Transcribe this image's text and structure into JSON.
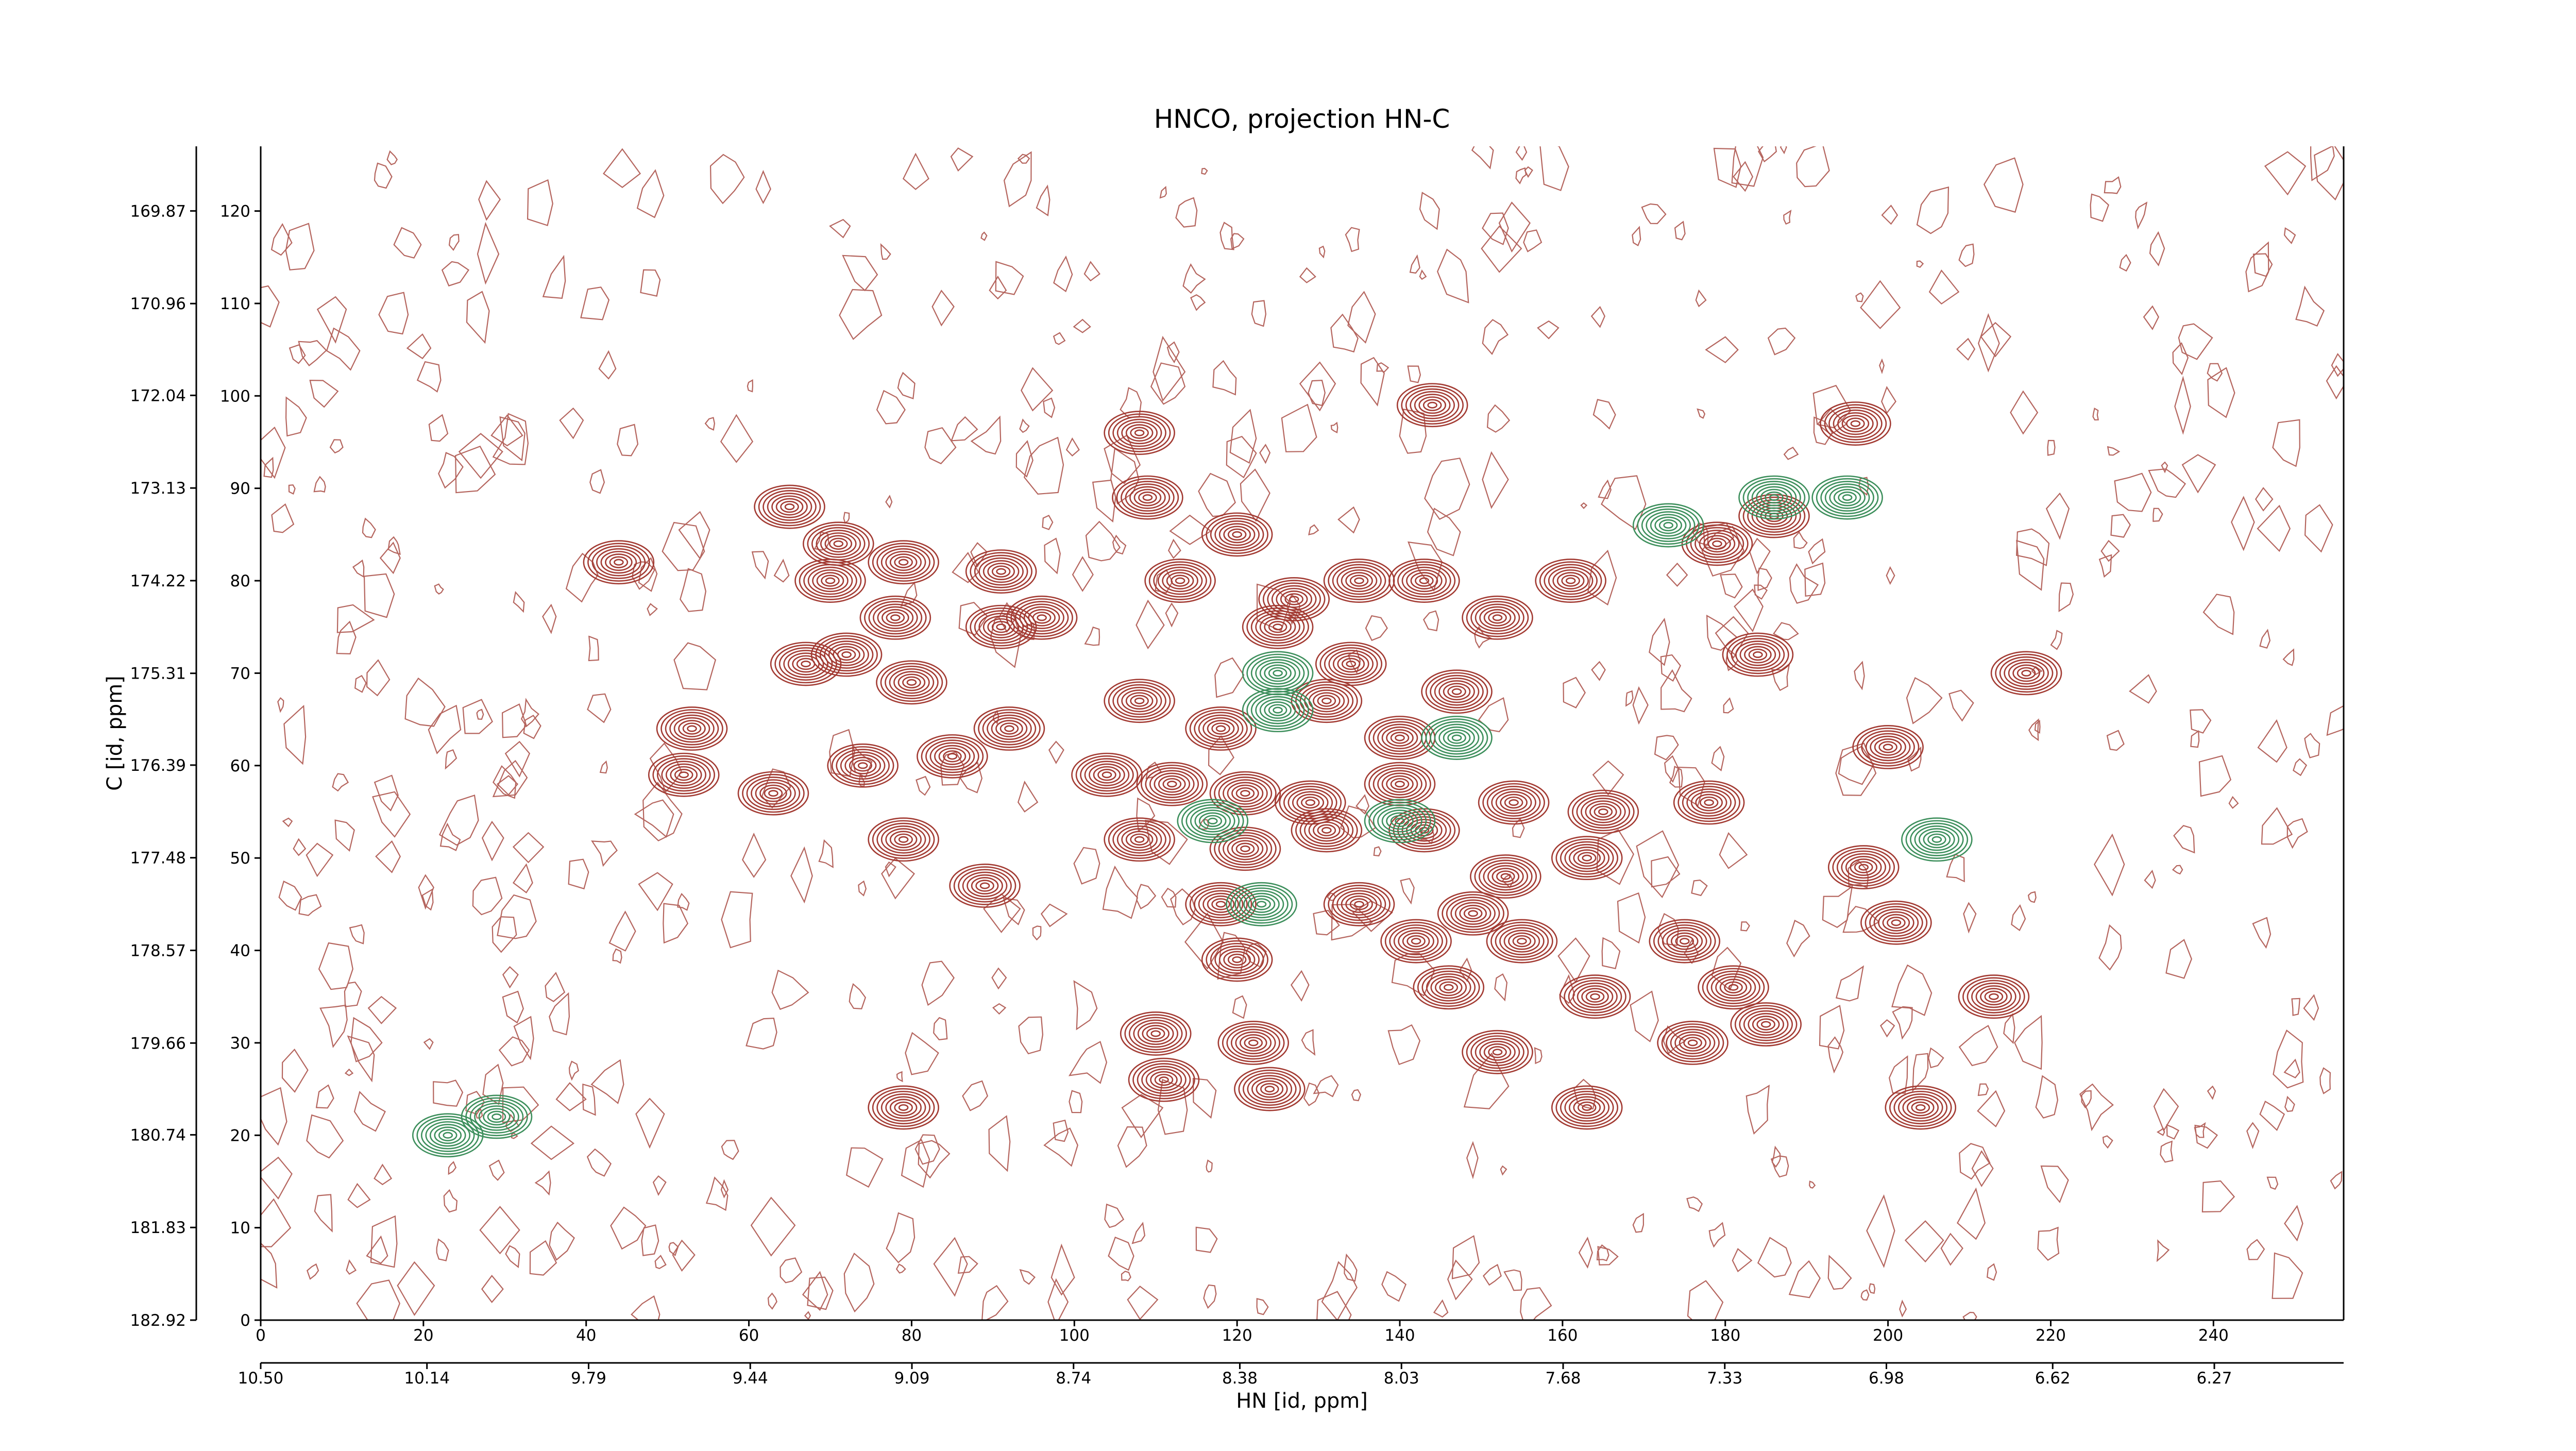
{
  "chart_data": {
    "type": "contour",
    "title": "HNCO, projection HN-C",
    "xlabel": "HN [id, ppm]",
    "ylabel": "C [id, ppm]",
    "xlim": [
      0,
      256
    ],
    "xticks": [
      0,
      20,
      40,
      60,
      80,
      100,
      120,
      140,
      160,
      180,
      200,
      220,
      240
    ],
    "x2lim": [
      10.5,
      5.99
    ],
    "x2ticks": [
      {
        "value": 10.5,
        "label": "10.50"
      },
      10.14,
      9.79,
      9.44,
      9.09,
      8.74,
      8.38,
      8.03,
      7.68,
      7.33,
      6.98,
      6.62,
      6.27
    ],
    "ylim": [
      0,
      127
    ],
    "yticks": [
      0,
      10,
      20,
      30,
      40,
      50,
      60,
      70,
      80,
      90,
      100,
      110,
      120
    ],
    "y2lim": [
      182.92,
      169.11
    ],
    "y2ticks": [
      182.92,
      181.83,
      180.74,
      179.66,
      178.57,
      177.48,
      176.39,
      175.31,
      174.22,
      173.13,
      172.04,
      170.96,
      169.87
    ],
    "series": [
      {
        "color": "#a33b33",
        "x": [
          44,
          65,
          71,
          70,
          79,
          78,
          67,
          72,
          80,
          91,
          91,
          96,
          53,
          52,
          63,
          74,
          85,
          92,
          79,
          89,
          108,
          109,
          120,
          144,
          196,
          108,
          113,
          127,
          135,
          143,
          125,
          134,
          147,
          131,
          140,
          118,
          104,
          112,
          121,
          129,
          140,
          154,
          165,
          178,
          108,
          121,
          131,
          143,
          153,
          163,
          197,
          200,
          184,
          217,
          201,
          118,
          135,
          149,
          142,
          155,
          120,
          146,
          164,
          175,
          181,
          185,
          176,
          110,
          122,
          111,
          124,
          152,
          163,
          204,
          213,
          79,
          152,
          161,
          179,
          186
        ],
        "y": [
          82,
          88,
          84,
          80,
          82,
          76,
          71,
          72,
          69,
          81,
          75,
          76,
          64,
          59,
          57,
          60,
          61,
          64,
          52,
          47,
          96,
          89,
          85,
          99,
          97,
          67,
          80,
          78,
          80,
          80,
          75,
          71,
          68,
          67,
          63,
          64,
          59,
          58,
          57,
          56,
          58,
          56,
          55,
          56,
          52,
          51,
          53,
          53,
          48,
          50,
          49,
          62,
          72,
          70,
          43,
          45,
          45,
          44,
          41,
          41,
          39,
          36,
          35,
          41,
          36,
          32,
          30,
          31,
          30,
          26,
          25,
          29,
          23,
          23,
          35,
          23,
          76,
          80,
          84,
          87
        ]
      },
      {
        "color": "#3d8f5c",
        "x": [
          173,
          186,
          195,
          23,
          29,
          117,
          140,
          147,
          125,
          125,
          123,
          206
        ],
        "y": [
          86,
          89,
          89,
          20,
          22,
          54,
          54,
          63,
          70,
          66,
          45,
          52
        ]
      }
    ]
  }
}
